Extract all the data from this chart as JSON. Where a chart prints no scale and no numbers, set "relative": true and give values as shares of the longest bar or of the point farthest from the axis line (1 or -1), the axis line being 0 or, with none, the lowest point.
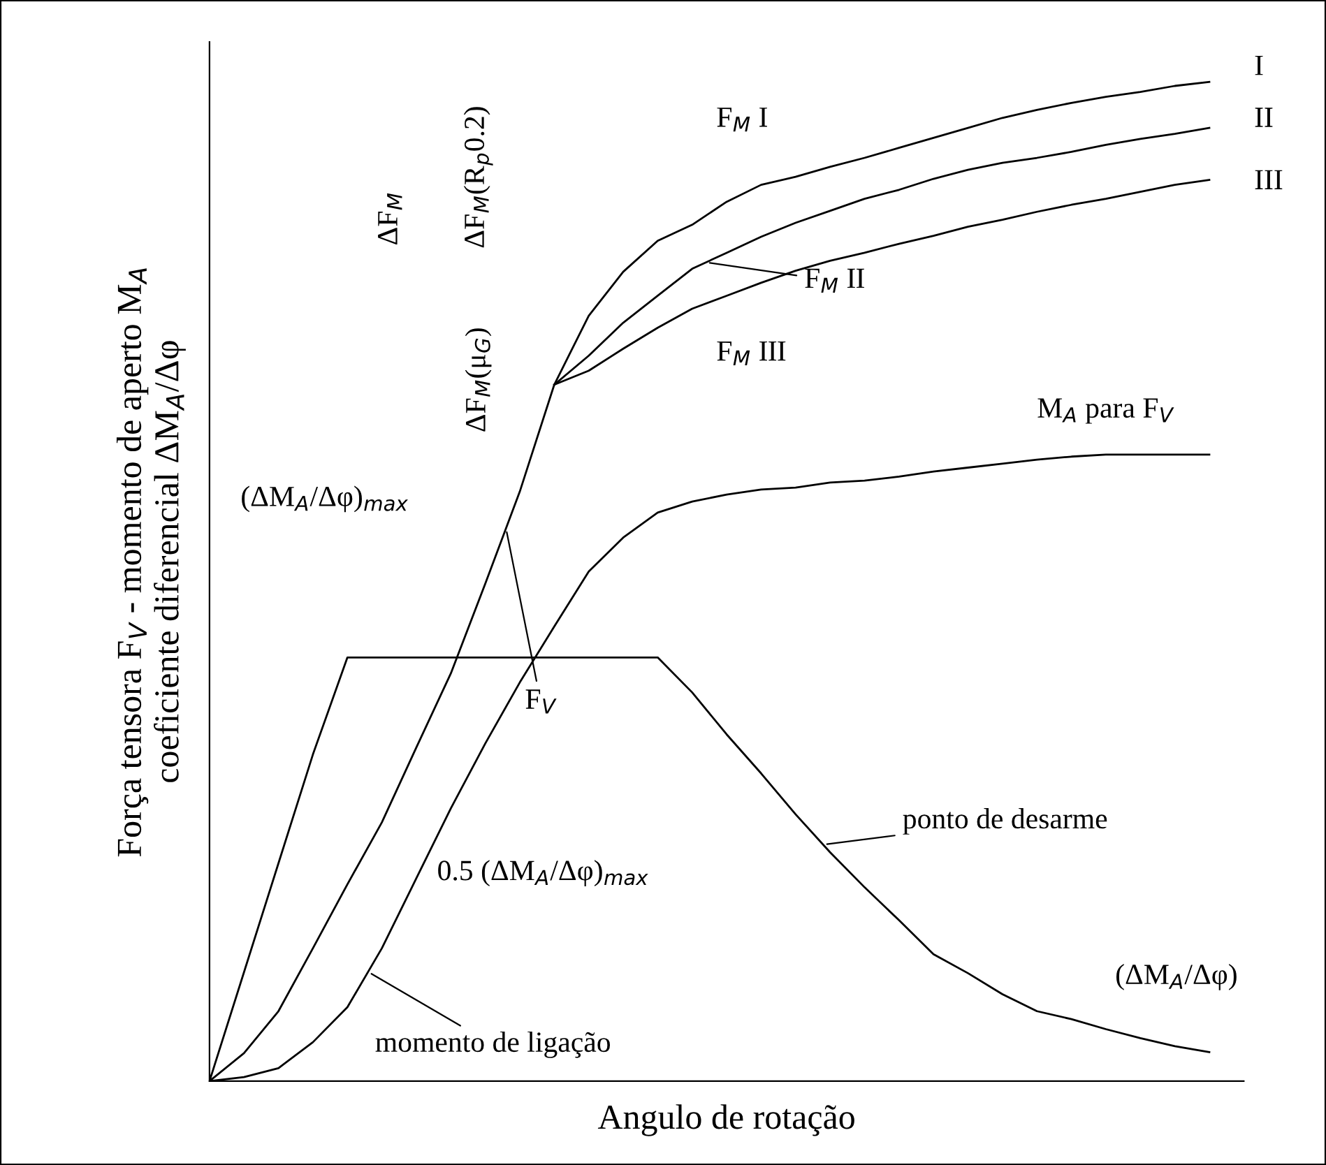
{
  "chart_data": {
    "type": "line",
    "relative": true,
    "xlabel": "Angulo de rotação",
    "ylabel": "Força tensora F$_{V}$ - momento de aperto M$_{A}$\ncoeficiente diferencial ΔM$_{A}$/Δφ",
    "categories": [
      null,
      null,
      null,
      null,
      null,
      null,
      null,
      null,
      null,
      null,
      null,
      null,
      null,
      null,
      null,
      null,
      null,
      null,
      null,
      null,
      null,
      null,
      null,
      null,
      null,
      null,
      null,
      null,
      null,
      null,
      null
    ],
    "series": [
      {
        "name": "I",
        "color": "#000000",
        "values": [
          0,
          0.028,
          0.07,
          0.133,
          0.197,
          0.259,
          0.334,
          0.408,
          0.498,
          0.59,
          0.697,
          0.766,
          0.81,
          0.841,
          0.857,
          0.88,
          0.897,
          0.905,
          0.915,
          0.924,
          0.934,
          0.944,
          0.954,
          0.964,
          0.972,
          0.979,
          0.985,
          0.99,
          0.996,
          1.0,
          null
        ]
      },
      {
        "name": "II",
        "color": "#000000",
        "values": [
          null,
          null,
          null,
          null,
          null,
          null,
          null,
          null,
          null,
          null,
          0.697,
          0.726,
          0.759,
          0.786,
          0.813,
          0.829,
          0.845,
          0.859,
          0.871,
          0.883,
          0.892,
          0.903,
          0.912,
          0.919,
          0.924,
          0.93,
          0.937,
          0.943,
          0.948,
          0.954,
          null
        ]
      },
      {
        "name": "III",
        "color": "#000000",
        "values": [
          null,
          null,
          null,
          null,
          null,
          null,
          null,
          null,
          null,
          null,
          0.697,
          0.711,
          0.733,
          0.754,
          0.773,
          0.786,
          0.799,
          0.811,
          0.821,
          0.829,
          0.838,
          0.846,
          0.855,
          0.862,
          0.87,
          0.877,
          0.883,
          0.89,
          0.897,
          0.902,
          null
        ]
      },
      {
        "name": "M$_{A}$ para F$_{V}$",
        "color": "#000000",
        "values": [
          0,
          0.004,
          0.013,
          0.039,
          0.074,
          0.133,
          0.203,
          0.273,
          0.338,
          0.399,
          0.455,
          0.51,
          0.544,
          0.569,
          0.58,
          0.587,
          0.592,
          0.594,
          0.599,
          0.601,
          0.605,
          0.61,
          0.614,
          0.618,
          0.622,
          0.625,
          0.627,
          0.627,
          0.627,
          0.627,
          null
        ]
      },
      {
        "name": "(ΔM$_{A}$/Δφ)",
        "color": "#000000",
        "values": [
          0,
          0.109,
          0.218,
          0.327,
          0.424,
          0.424,
          0.424,
          0.424,
          0.424,
          0.424,
          0.424,
          0.424,
          0.424,
          0.424,
          0.389,
          0.347,
          0.308,
          0.267,
          0.229,
          0.194,
          0.161,
          0.127,
          0.108,
          0.087,
          0.07,
          0.062,
          0.052,
          0.043,
          0.035,
          0.029,
          null
        ]
      }
    ],
    "annotations": [
      "F$_{V}$",
      "(ΔM$_{A}$/Δφ)$_{max}$",
      "0.5 (ΔM$_{A}$/Δφ)$_{max}$",
      "momento de ligação",
      "ponto de desarme",
      "F$_{M}$ I",
      "F$_{M}$ II",
      "F$_{M}$ III",
      "ΔF$_{M}$",
      "ΔF$_{M}$(R$_{p}$0.2)",
      "ΔF$_{M}$(μ$_{G}$)"
    ]
  }
}
